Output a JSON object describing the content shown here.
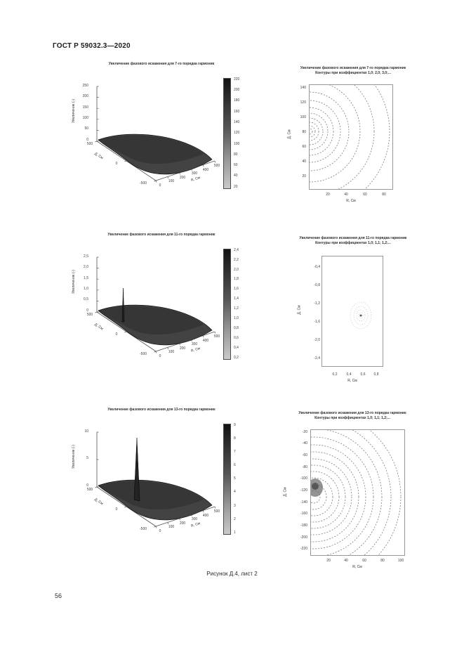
{
  "header": {
    "title": "ГОСТ Р 59032.3—2020"
  },
  "caption": "Рисунок Д.4, лист 2",
  "page_number": "56",
  "figures": {
    "f1": {
      "title": "Увеличение фазового искажения для 7-го порядка гармоник",
      "ylabel": "Увеличение (-)",
      "yticks": [
        "250",
        "200",
        "150",
        "100",
        "50",
        "0"
      ],
      "colorbar_ticks": [
        "220",
        "200",
        "180",
        "160",
        "140",
        "120",
        "100",
        "80",
        "60",
        "40",
        "20"
      ],
      "d_axis_label": "Д, См",
      "d_axis_ticks": [
        "500",
        "0",
        "-500"
      ],
      "r_axis_label": "R, См",
      "r_axis_ticks": [
        "0",
        "100",
        "200",
        "300",
        "400",
        "500"
      ]
    },
    "f2": {
      "title_line1": "Увеличение фазового искажения для 7-го порядка гармоник",
      "title_line2": "Контуры при коэффициентах 1,0; 2,0; 3,0;...",
      "ylabel": "Д, См",
      "yticks": [
        "140",
        "120",
        "100",
        "80",
        "60",
        "40",
        "20"
      ],
      "xlabel": "R, См",
      "xticks": [
        "20",
        "40",
        "60",
        "80"
      ]
    },
    "f3": {
      "title": "Увеличение фазового искажения для 11-го порядка гармоник",
      "ylabel": "Увеличение (-)",
      "yticks": [
        "2,5",
        "2,0",
        "1,5",
        "1,0",
        "0,5",
        "0"
      ],
      "colorbar_ticks": [
        "2,4",
        "2,2",
        "2,0",
        "1,8",
        "1,6",
        "1,4",
        "1,2",
        "1,0",
        "0,8",
        "0,6",
        "0,4",
        "0,2"
      ],
      "d_axis_label": "Д, См",
      "d_axis_ticks": [
        "500",
        "0",
        "-500"
      ],
      "r_axis_label": "R, См",
      "r_axis_ticks": [
        "0",
        "100",
        "200",
        "300",
        "400",
        "500"
      ]
    },
    "f4": {
      "title_line1": "Увеличение фазового искажения для 11-го порядка гармоник",
      "title_line2": "Контуры при коэффициентах 1,0; 1,1; 1,2;...",
      "ylabel": "Д, См",
      "yticks": [
        "-0,4",
        "-0,8",
        "-1,2",
        "-1,6",
        "-2,0",
        "-2,4"
      ],
      "xlabel": "R, См",
      "xticks": [
        "0,2",
        "0,4",
        "0,6",
        "0,8"
      ]
    },
    "f5": {
      "title": "Увеличение фазового искажения для 13-го порядка гармоник",
      "ylabel": "Увеличение (-)",
      "yticks": [
        "10",
        "5",
        "0"
      ],
      "colorbar_ticks": [
        "9",
        "8",
        "7",
        "6",
        "5",
        "4",
        "3",
        "2",
        "1"
      ],
      "d_axis_label": "Д, См",
      "d_axis_ticks": [
        "500",
        "0",
        "-500"
      ],
      "r_axis_label": "R, См",
      "r_axis_ticks": [
        "0",
        "100",
        "200",
        "300",
        "400",
        "500"
      ]
    },
    "f6": {
      "title_line1": "Увеличение фазового искажения для 13-го порядка гармоник",
      "title_line2": "Контуры при коэффициентах 1,0; 1,1; 1,2;...",
      "ylabel": "Д, См",
      "yticks": [
        "-20",
        "-40",
        "-60",
        "-80",
        "-100",
        "-120",
        "-140",
        "-160",
        "-180",
        "-200",
        "-220"
      ],
      "xlabel": "R, См",
      "xticks": [
        "20",
        "40",
        "60",
        "80",
        "100"
      ]
    }
  }
}
